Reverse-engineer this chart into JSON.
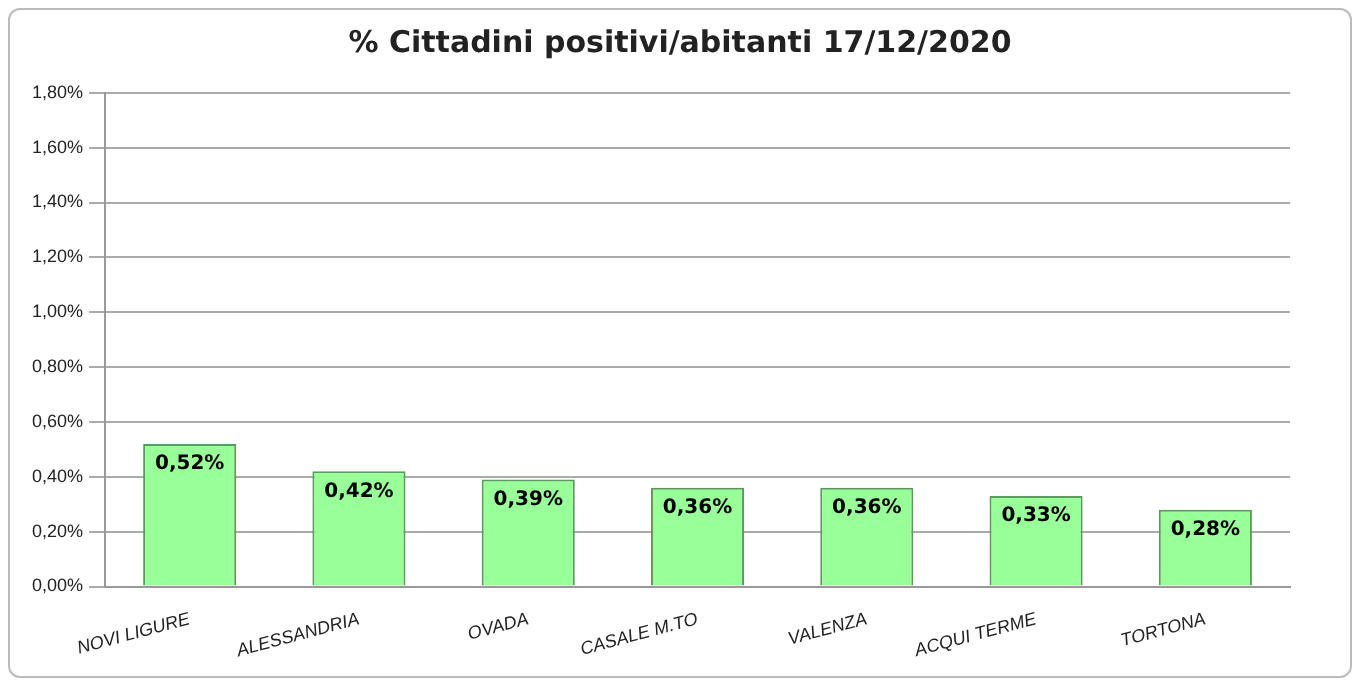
{
  "chart_data": {
    "type": "bar",
    "title": "% Cittadini positivi/abitanti 17/12/2020",
    "categories": [
      "NOVI LIGURE",
      "ALESSANDRIA",
      "OVADA",
      "CASALE M.TO",
      "VALENZA",
      "ACQUI TERME",
      "TORTONA"
    ],
    "values": [
      0.52,
      0.42,
      0.39,
      0.36,
      0.36,
      0.33,
      0.28
    ],
    "value_labels": [
      "0,52%",
      "0,42%",
      "0,39%",
      "0,36%",
      "0,36%",
      "0,33%",
      "0,28%"
    ],
    "color": "#99ff99",
    "ylim": [
      0,
      1.8
    ],
    "yticks": [
      {
        "value": 0,
        "label": "0,00%"
      },
      {
        "value": 0.2,
        "label": "0,20%"
      },
      {
        "value": 0.4,
        "label": "0,40%"
      },
      {
        "value": 0.6,
        "label": "0,60%"
      },
      {
        "value": 0.8,
        "label": "0,80%"
      },
      {
        "value": 1.0,
        "label": "1,00%"
      },
      {
        "value": 1.2,
        "label": "1,20%"
      },
      {
        "value": 1.4,
        "label": "1,40%"
      },
      {
        "value": 1.6,
        "label": "1,60%"
      },
      {
        "value": 1.8,
        "label": "1,80%"
      }
    ],
    "grid": "y",
    "legend": false
  }
}
